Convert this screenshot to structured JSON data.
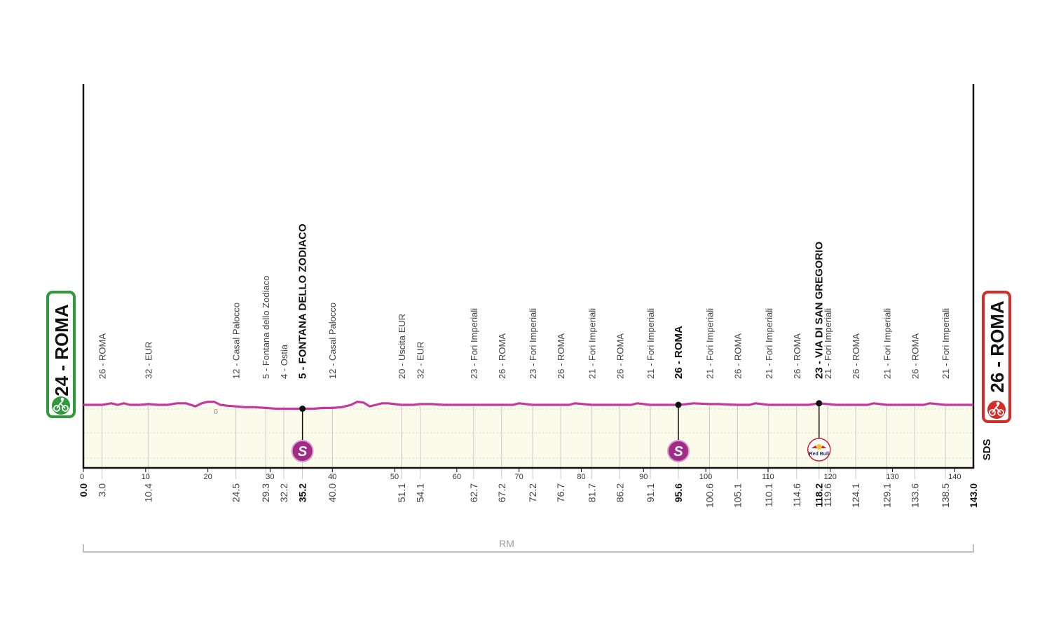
{
  "colors": {
    "profile_line": "#c4399e",
    "area_fill": "#fbfbec",
    "sprint_badge": "#a02c87",
    "start_green": "#2e9a3b",
    "finish_red": "#d62b27",
    "axis": "#111111",
    "grid": "#c8c8c8",
    "footer_line": "#c0c0c0",
    "footer_text": "#9a9a9a",
    "waypoint_text": "#444444"
  },
  "start": {
    "label": "24 - ROMA",
    "icon": "cyclist-start-icon"
  },
  "finish": {
    "label": "26 - ROMA",
    "icon": "cyclist-finish-icon"
  },
  "sponsor_side_label": "SDS",
  "zero_label": "0",
  "footer_label": "RM",
  "redbull_label": "Red Bull",
  "chart_data": {
    "type": "area",
    "title": "",
    "xlabel": "",
    "ylabel": "",
    "x_unit": "km",
    "xlim": [
      0,
      143.0
    ],
    "xticks": [
      0,
      10,
      20,
      30,
      40,
      50,
      60,
      70,
      80,
      90,
      100,
      110,
      120,
      130,
      140
    ],
    "series": [
      {
        "values_x": [
          0,
          1.5,
          3,
          4.5,
          5.5,
          6.5,
          7.5,
          9,
          10.5,
          12,
          13.5,
          15,
          16.5,
          18,
          19,
          20,
          21,
          22,
          23,
          24.5,
          26,
          27.5,
          29.3,
          31,
          32.2,
          34,
          35.2,
          37,
          38.5,
          40,
          41.5,
          43,
          44,
          45,
          46,
          47,
          48,
          49,
          50,
          51.1,
          53,
          54.1,
          56,
          58,
          60,
          62.7,
          65,
          67.2,
          69,
          70,
          72.2,
          74,
          76.7,
          78,
          79,
          81.7,
          84,
          86.2,
          88,
          89,
          91.1,
          93,
          95.6,
          97,
          98,
          100.6,
          102,
          105.1,
          107,
          108,
          110.1,
          112,
          114.6,
          116.5,
          118.2,
          119.6,
          121,
          122,
          124.1,
          126,
          127,
          129.1,
          131,
          133.6,
          135,
          136,
          138.5,
          141,
          143
        ],
        "values_y": [
          24,
          24,
          24,
          25,
          24,
          25,
          24,
          24,
          24.5,
          24,
          24,
          25,
          25,
          23,
          25,
          26,
          26,
          24,
          23.5,
          23,
          22.5,
          22.5,
          22,
          21.5,
          21.5,
          21.5,
          21.5,
          21.5,
          22,
          22,
          22.5,
          24,
          26,
          25.5,
          23,
          24,
          25,
          25,
          24.5,
          24,
          24,
          24.5,
          24.5,
          24,
          24,
          24,
          24,
          24,
          24,
          25,
          24,
          24,
          24,
          24,
          25,
          24,
          24,
          24,
          24,
          25,
          24,
          24,
          24,
          24.5,
          25,
          24.5,
          24.5,
          24,
          24,
          25,
          24,
          24,
          24,
          24,
          25,
          24.5,
          24,
          24,
          24,
          24,
          25,
          24,
          24,
          24,
          24,
          25,
          24,
          24,
          24
        ]
      }
    ],
    "waypoints": [
      {
        "km": "0.0",
        "label": "",
        "bold": true
      },
      {
        "km": "3.0",
        "label": "26 - ROMA",
        "bold": false
      },
      {
        "km": "10.4",
        "label": "32 - EUR",
        "bold": false
      },
      {
        "km": "24.5",
        "label": "12 - Casal Palocco",
        "bold": false
      },
      {
        "km": "29.3",
        "label": "5 - Fontana dello Zodiaco",
        "bold": false
      },
      {
        "km": "32.2",
        "label": "4 - Ostia",
        "bold": false
      },
      {
        "km": "35.2",
        "label": "5 - FONTANA DELLO ZODIACO",
        "bold": true
      },
      {
        "km": "40.0",
        "label": "12 - Casal Palocco",
        "bold": false
      },
      {
        "km": "51.1",
        "label": "20 - Uscita EUR",
        "bold": false
      },
      {
        "km": "54.1",
        "label": "32 - EUR",
        "bold": false
      },
      {
        "km": "62.7",
        "label": "23 - Fori Imperiali",
        "bold": false
      },
      {
        "km": "67.2",
        "label": "26 - ROMA",
        "bold": false
      },
      {
        "km": "72.2",
        "label": "23 - Fori Imperiali",
        "bold": false
      },
      {
        "km": "76.7",
        "label": "26 - ROMA",
        "bold": false
      },
      {
        "km": "81.7",
        "label": "21 - Fori Imperiali",
        "bold": false
      },
      {
        "km": "86.2",
        "label": "26 - ROMA",
        "bold": false
      },
      {
        "km": "91.1",
        "label": "21 - Fori Imperiali",
        "bold": false
      },
      {
        "km": "95.6",
        "label": "26 - ROMA",
        "bold": true
      },
      {
        "km": "100.6",
        "label": "21 - Fori Imperiali",
        "bold": false
      },
      {
        "km": "105.1",
        "label": "26 - ROMA",
        "bold": false
      },
      {
        "km": "110.1",
        "label": "21 - Fori Imperiali",
        "bold": false
      },
      {
        "km": "114.6",
        "label": "26 - ROMA",
        "bold": false
      },
      {
        "km": "118.2",
        "label": "23 - VIA DI SAN GREGORIO",
        "bold": true
      },
      {
        "km": "119.6",
        "label": "21 - Fori Imperiali",
        "bold": false
      },
      {
        "km": "124.1",
        "label": "26 - ROMA",
        "bold": false
      },
      {
        "km": "129.1",
        "label": "21 - Fori Imperiali",
        "bold": false
      },
      {
        "km": "133.6",
        "label": "26 - ROMA",
        "bold": false
      },
      {
        "km": "138.5",
        "label": "21 - Fori Imperiali",
        "bold": false
      },
      {
        "km": "143.0",
        "label": "",
        "bold": true
      }
    ],
    "sprints": [
      {
        "km": 35.2,
        "badge": "S",
        "type": "intermediate-sprint"
      },
      {
        "km": 95.6,
        "badge": "S",
        "type": "intermediate-sprint"
      },
      {
        "km": 118.2,
        "badge": "Red Bull",
        "type": "red-bull-km"
      }
    ]
  }
}
